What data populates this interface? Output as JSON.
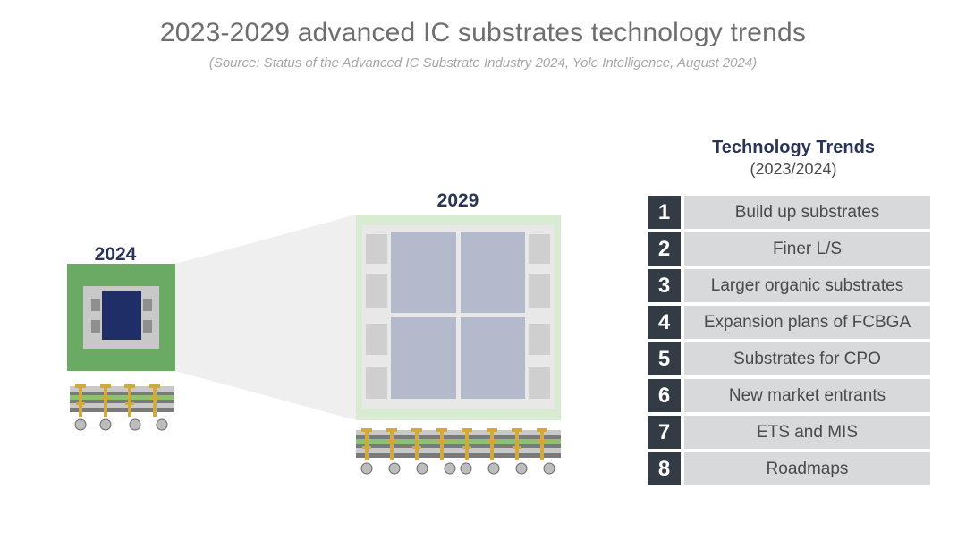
{
  "header": {
    "title": "2023-2029 advanced IC substrates technology trends",
    "source": "(Source: Status of the Advanced IC Substrate Industry 2024, Yole Intelligence, August 2024)"
  },
  "diagram": {
    "small_year": "2024",
    "large_year": "2029"
  },
  "trends": {
    "heading": "Technology Trends",
    "period": "(2023/2024)",
    "items": [
      {
        "num": "1",
        "label": "Build up substrates"
      },
      {
        "num": "2",
        "label": "Finer L/S"
      },
      {
        "num": "3",
        "label": "Larger organic substrates"
      },
      {
        "num": "4",
        "label": "Expansion plans of FCBGA"
      },
      {
        "num": "5",
        "label": "Substrates for CPO"
      },
      {
        "num": "6",
        "label": "New market entrants"
      },
      {
        "num": "7",
        "label": "ETS and MIS"
      },
      {
        "num": "8",
        "label": "Roadmaps"
      }
    ]
  },
  "colors": {
    "navy": "#2a3456",
    "green_dark": "#6aaa64",
    "green_light": "#d9ebd3",
    "die_blue": "#1f2e66",
    "die_lavender": "#b4bacc",
    "num_bg": "#333c45",
    "label_bg": "#d8d9db"
  }
}
